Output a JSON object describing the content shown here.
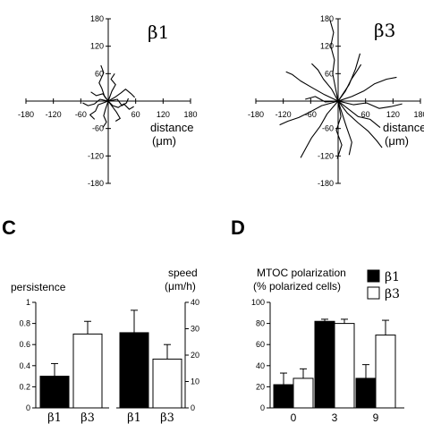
{
  "panel_letters": {
    "c": "C",
    "d": "D"
  },
  "chart_data": [
    {
      "type": "scatter",
      "panel": "A",
      "title": "β1",
      "xlabel": "distance",
      "xunit": "(μm)",
      "xticks": [
        -180,
        -120,
        -60,
        60,
        120,
        180
      ],
      "yticks": [
        180,
        120,
        60,
        -60,
        -120,
        -180
      ],
      "xlim": [
        -180,
        180
      ],
      "ylim": [
        -180,
        180
      ],
      "tracks": [
        [
          [
            0,
            0
          ],
          [
            -8,
            10
          ],
          [
            -14,
            28
          ],
          [
            -20,
            40
          ],
          [
            -10,
            62
          ],
          [
            -16,
            78
          ]
        ],
        [
          [
            0,
            0
          ],
          [
            14,
            8
          ],
          [
            28,
            18
          ],
          [
            38,
            26
          ],
          [
            50,
            16
          ],
          [
            58,
            8
          ]
        ],
        [
          [
            0,
            0
          ],
          [
            10,
            -10
          ],
          [
            22,
            -14
          ],
          [
            34,
            -6
          ],
          [
            46,
            -18
          ],
          [
            56,
            -12
          ]
        ],
        [
          [
            0,
            0
          ],
          [
            -18,
            4
          ],
          [
            -30,
            -6
          ],
          [
            -44,
            -10
          ],
          [
            -56,
            -4
          ]
        ],
        [
          [
            0,
            0
          ],
          [
            -6,
            -18
          ],
          [
            -10,
            -32
          ],
          [
            -4,
            -46
          ],
          [
            -12,
            -58
          ]
        ],
        [
          [
            0,
            0
          ],
          [
            8,
            22
          ],
          [
            16,
            36
          ],
          [
            6,
            48
          ],
          [
            14,
            60
          ]
        ],
        [
          [
            0,
            0
          ],
          [
            -22,
            -8
          ],
          [
            -28,
            -22
          ],
          [
            -40,
            -30
          ],
          [
            -30,
            -40
          ]
        ],
        [
          [
            0,
            0
          ],
          [
            18,
            -24
          ],
          [
            26,
            -38
          ],
          [
            16,
            -44
          ]
        ],
        [
          [
            0,
            0
          ],
          [
            -12,
            16
          ],
          [
            -26,
            12
          ],
          [
            -38,
            20
          ]
        ],
        [
          [
            0,
            0
          ],
          [
            20,
            4
          ],
          [
            30,
            -10
          ],
          [
            40,
            -4
          ],
          [
            44,
            6
          ]
        ]
      ]
    },
    {
      "type": "scatter",
      "panel": "B",
      "title": "β3",
      "xlabel": "distance",
      "xunit": "(μm)",
      "xticks": [
        -180,
        -120,
        -60,
        60,
        120,
        180
      ],
      "yticks": [
        180,
        120,
        60,
        -60,
        -120,
        -180
      ],
      "xlim": [
        -180,
        180
      ],
      "ylim": [
        -180,
        180
      ],
      "tracks": [
        [
          [
            0,
            0
          ],
          [
            -6,
            30
          ],
          [
            -12,
            60
          ],
          [
            -8,
            90
          ],
          [
            -16,
            120
          ],
          [
            -10,
            150
          ],
          [
            -18,
            178
          ]
        ],
        [
          [
            0,
            0
          ],
          [
            16,
            22
          ],
          [
            28,
            46
          ],
          [
            40,
            64
          ],
          [
            50,
            80
          ]
        ],
        [
          [
            0,
            0
          ],
          [
            30,
            10
          ],
          [
            56,
            22
          ],
          [
            80,
            38
          ],
          [
            106,
            48
          ],
          [
            128,
            52
          ]
        ],
        [
          [
            0,
            0
          ],
          [
            34,
            -8
          ],
          [
            62,
            -4
          ],
          [
            90,
            -16
          ],
          [
            116,
            -12
          ],
          [
            140,
            -6
          ]
        ],
        [
          [
            0,
            0
          ],
          [
            20,
            -26
          ],
          [
            44,
            -48
          ],
          [
            66,
            -66
          ],
          [
            84,
            -86
          ],
          [
            96,
            -102
          ]
        ],
        [
          [
            0,
            0
          ],
          [
            6,
            -34
          ],
          [
            -4,
            -64
          ],
          [
            8,
            -96
          ],
          [
            -2,
            -126
          ]
        ],
        [
          [
            0,
            0
          ],
          [
            -24,
            -28
          ],
          [
            -40,
            -56
          ],
          [
            -58,
            -80
          ],
          [
            -70,
            -102
          ],
          [
            -82,
            -124
          ]
        ],
        [
          [
            0,
            0
          ],
          [
            -36,
            -10
          ],
          [
            -62,
            -24
          ],
          [
            -86,
            -36
          ],
          [
            -110,
            -44
          ],
          [
            -128,
            -52
          ]
        ],
        [
          [
            0,
            0
          ],
          [
            -30,
            14
          ],
          [
            -58,
            30
          ],
          [
            -82,
            44
          ],
          [
            -100,
            58
          ],
          [
            -114,
            64
          ]
        ],
        [
          [
            0,
            0
          ],
          [
            -14,
            26
          ],
          [
            -32,
            48
          ],
          [
            -44,
            68
          ],
          [
            -58,
            82
          ]
        ],
        [
          [
            0,
            0
          ],
          [
            24,
            36
          ],
          [
            38,
            70
          ],
          [
            48,
            104
          ]
        ],
        [
          [
            0,
            0
          ],
          [
            -28,
            -2
          ],
          [
            -50,
            10
          ],
          [
            -72,
            4
          ]
        ],
        [
          [
            0,
            0
          ],
          [
            18,
            -56
          ],
          [
            30,
            -90
          ],
          [
            24,
            -118
          ]
        ],
        [
          [
            0,
            0
          ],
          [
            44,
            -34
          ],
          [
            70,
            -40
          ],
          [
            92,
            -58
          ]
        ]
      ]
    },
    {
      "type": "bar",
      "panel": "C",
      "ylabel": "persistence",
      "yticks": [
        0,
        0.2,
        0.4,
        0.6,
        0.8,
        1
      ],
      "ylim": [
        0,
        1
      ],
      "categories": [
        "β1",
        "β3"
      ],
      "values": [
        0.3,
        0.7
      ],
      "errors": [
        0.12,
        0.12
      ],
      "colors": [
        "#000000",
        "#ffffff"
      ]
    },
    {
      "type": "bar",
      "panel": "C",
      "ylabel": "speed",
      "yunit": "(μm/h)",
      "yticks": [
        0,
        10,
        20,
        30,
        40
      ],
      "ylim": [
        0,
        40
      ],
      "categories": [
        "β1",
        "β3"
      ],
      "values": [
        28.5,
        18.5
      ],
      "errors": [
        8.5,
        5.5
      ],
      "colors": [
        "#000000",
        "#ffffff"
      ]
    },
    {
      "type": "bar",
      "panel": "D",
      "ylabel": "MTOC polarization",
      "yunit": "(% polarized cells)",
      "yticks": [
        0,
        20,
        40,
        60,
        80,
        100
      ],
      "ylim": [
        0,
        100
      ],
      "categories": [
        "0",
        "3",
        "9"
      ],
      "series": [
        {
          "name": "β1",
          "values": [
            22,
            82,
            28
          ],
          "errors": [
            11,
            2,
            13
          ],
          "color": "#000000"
        },
        {
          "name": "β3",
          "values": [
            28,
            80,
            69
          ],
          "errors": [
            9,
            4,
            14
          ],
          "color": "#ffffff"
        }
      ]
    }
  ]
}
